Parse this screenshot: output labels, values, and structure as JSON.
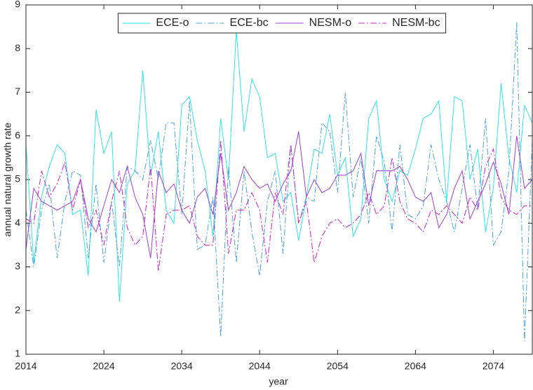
{
  "chart_data": {
    "type": "line",
    "x_label": "year",
    "y_label": "annual natural growth rate",
    "x": [
      2014,
      2015,
      2016,
      2017,
      2018,
      2019,
      2020,
      2021,
      2022,
      2023,
      2024,
      2025,
      2026,
      2027,
      2028,
      2029,
      2030,
      2031,
      2032,
      2033,
      2034,
      2035,
      2036,
      2037,
      2038,
      2039,
      2040,
      2041,
      2042,
      2043,
      2044,
      2045,
      2046,
      2047,
      2048,
      2049,
      2050,
      2051,
      2052,
      2053,
      2054,
      2055,
      2056,
      2057,
      2058,
      2059,
      2060,
      2061,
      2062,
      2063,
      2064,
      2065,
      2066,
      2067,
      2068,
      2069,
      2070,
      2071,
      2072,
      2073,
      2074,
      2075,
      2076,
      2077,
      2078,
      2079
    ],
    "xlim": [
      2014,
      2079
    ],
    "xticks": [
      2014,
      2024,
      2034,
      2044,
      2054,
      2064,
      2074
    ],
    "ylim": [
      1,
      9
    ],
    "yticks": [
      1,
      2,
      3,
      4,
      5,
      6,
      7,
      8,
      9
    ],
    "legend": "top",
    "series": [
      {
        "name": "ECE-o",
        "color": "#2ee6e6",
        "style": "solid",
        "values": [
          5.8,
          3.1,
          4.6,
          5.3,
          5.8,
          5.6,
          4.2,
          4.3,
          2.8,
          6.6,
          5.6,
          6.1,
          2.2,
          4.9,
          5.2,
          7.5,
          5.1,
          6.1,
          4.3,
          4.0,
          6.7,
          6.9,
          5.9,
          5.2,
          3.7,
          6.4,
          5.0,
          8.4,
          6.1,
          7.3,
          6.9,
          5.5,
          5.6,
          4.5,
          4.7,
          3.6,
          4.6,
          5.7,
          5.6,
          6.5,
          5.1,
          5.5,
          3.7,
          4.1,
          6.4,
          6.8,
          5.0,
          4.5,
          5.2,
          5.1,
          5.7,
          6.4,
          6.5,
          6.8,
          4.5,
          6.9,
          6.8,
          5.0,
          5.7,
          3.8,
          4.8,
          7.2,
          5.5,
          4.7,
          6.7,
          6.3
        ]
      },
      {
        "name": "ECE-bc",
        "color": "#4aa3d6",
        "style": "dashdot",
        "values": [
          4.3,
          3.0,
          4.3,
          4.9,
          3.2,
          4.5,
          5.2,
          5.1,
          3.2,
          4.9,
          3.1,
          4.5,
          3.0,
          5.3,
          5.2,
          5.0,
          5.9,
          5.0,
          6.3,
          6.3,
          4.2,
          6.8,
          3.4,
          3.5,
          4.6,
          1.4,
          5.3,
          3.1,
          5.2,
          3.8,
          2.8,
          4.5,
          5.2,
          3.3,
          5.8,
          4.0,
          4.6,
          4.5,
          6.3,
          6.1,
          4.7,
          7.0,
          4.6,
          5.5,
          4.0,
          6.0,
          5.4,
          3.8,
          5.8,
          4.2,
          4.1,
          4.4,
          5.8,
          5.0,
          4.5,
          3.8,
          4.8,
          5.8,
          4.3,
          6.4,
          3.5,
          3.8,
          5.2,
          8.6,
          1.3,
          5.9
        ]
      },
      {
        "name": "NESM-o",
        "color": "#9b40d4",
        "style": "solid",
        "values": [
          3.4,
          4.8,
          4.5,
          4.4,
          4.3,
          4.4,
          4.5,
          5.0,
          4.1,
          3.8,
          4.4,
          5.0,
          4.7,
          5.3,
          4.6,
          4.2,
          3.2,
          5.2,
          4.7,
          4.9,
          4.3,
          4.0,
          4.6,
          4.8,
          4.2,
          5.6,
          4.3,
          4.7,
          5.3,
          5.0,
          4.8,
          4.9,
          4.5,
          4.9,
          5.2,
          6.1,
          4.6,
          5.0,
          4.7,
          4.8,
          5.1,
          5.1,
          5.2,
          5.6,
          4.4,
          5.2,
          5.2,
          5.2,
          5.3,
          5.0,
          4.6,
          4.5,
          4.7,
          3.9,
          4.2,
          4.8,
          5.2,
          4.1,
          4.5,
          4.9,
          5.4,
          4.9,
          4.2,
          6.0,
          4.8,
          5.0
        ]
      },
      {
        "name": "NESM-bc",
        "color": "#d020c8",
        "style": "dashdot",
        "values": [
          4.1,
          4.0,
          5.2,
          4.6,
          4.9,
          5.4,
          4.3,
          5.0,
          3.9,
          4.3,
          3.5,
          4.5,
          5.2,
          3.9,
          3.5,
          3.7,
          5.3,
          2.9,
          4.2,
          4.3,
          4.3,
          4.4,
          3.7,
          3.5,
          3.5,
          5.9,
          3.3,
          4.3,
          4.3,
          4.7,
          4.3,
          3.1,
          4.7,
          4.2,
          5.8,
          4.0,
          4.5,
          3.1,
          3.7,
          4.0,
          4.1,
          3.9,
          4.0,
          4.2,
          4.7,
          4.2,
          4.4,
          5.5,
          4.5,
          4.1,
          4.0,
          3.8,
          4.3,
          4.2,
          4.4,
          4.2,
          4.0,
          4.6,
          4.3,
          5.3,
          5.7,
          4.6,
          4.3,
          4.2,
          4.4,
          4.4
        ]
      }
    ]
  }
}
